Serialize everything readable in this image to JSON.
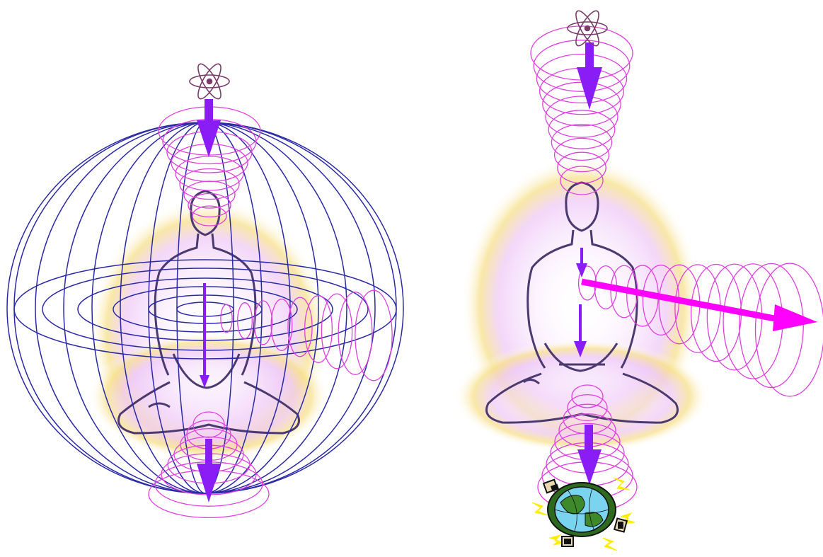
{
  "colors": {
    "background": "#ffffff",
    "field_lines": "#2a2aa8",
    "vortex_rings": "#e040e0",
    "flow_arrows": "#8a1cf5",
    "outward_arrow": "#ff00ff",
    "aura_glow": "#f4d03f",
    "aura_inner": "#e6b3f5",
    "figure_outline": "#4a3a70",
    "atom_symbol": "#7a3a6a",
    "earth_land": "#3e8a2a",
    "earth_water": "#7ad4f0",
    "earth_sparks": "#ffee00"
  },
  "panels": [
    {
      "name": "toroidal-field-panel",
      "elements": [
        "atom-icon",
        "meditating-figure",
        "torus-sphere",
        "vortex-top",
        "vortex-bottom",
        "vortex-right",
        "flow-arrow-down"
      ]
    },
    {
      "name": "grounding-panel",
      "elements": [
        "atom-icon",
        "meditating-figure",
        "vortex-top",
        "vortex-heart-outward",
        "vortex-bottom",
        "earth-icon",
        "flow-arrow-down"
      ]
    }
  ]
}
